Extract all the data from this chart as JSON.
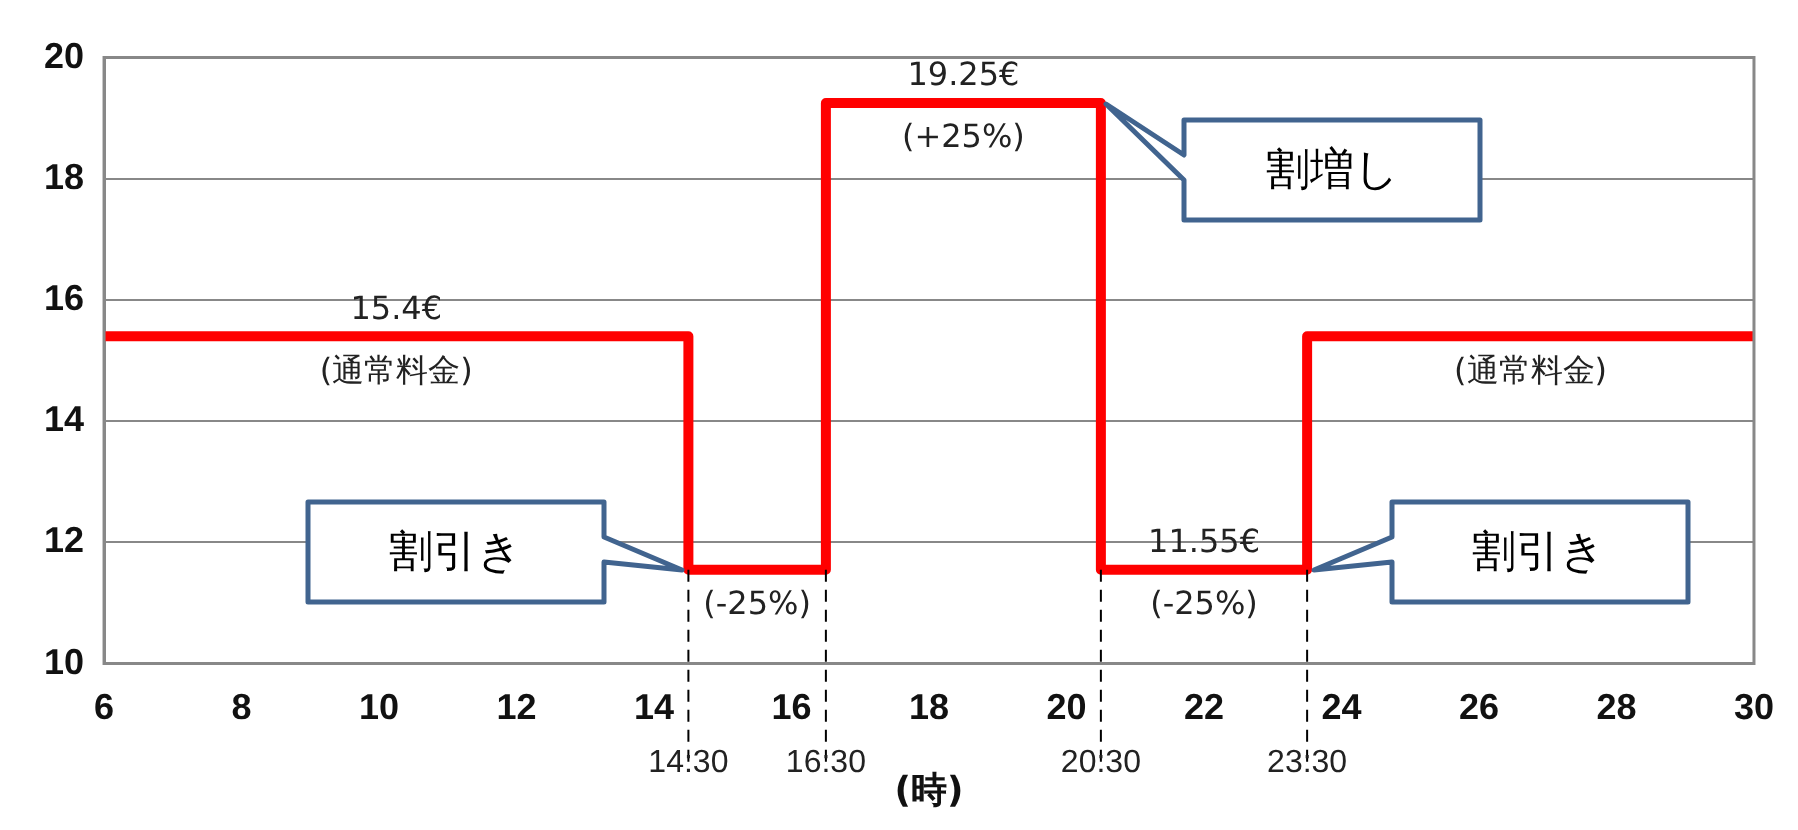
{
  "chart_data": {
    "type": "step",
    "xlabel": "(時)",
    "x": [
      6,
      14.5,
      16.5,
      20.5,
      23.5,
      30
    ],
    "series": [
      {
        "color": "#ff0000",
        "values": [
          15.4,
          11.55,
          19.25,
          11.55,
          15.4,
          15.4
        ]
      }
    ],
    "xlim": [
      6,
      30
    ],
    "xticks": [
      6,
      8,
      10,
      12,
      14,
      16,
      18,
      20,
      22,
      24,
      26,
      28,
      30
    ],
    "ylim": [
      10,
      20
    ],
    "yticks": [
      10,
      12,
      14,
      16,
      18,
      20
    ],
    "grid": "y",
    "legend": false,
    "marker": "none",
    "line_style": "solid",
    "ref_lines": [
      {
        "axis": "x",
        "value": 14.5,
        "label": "14:30",
        "line_style": "dashed"
      },
      {
        "axis": "x",
        "value": 16.5,
        "label": "16:30",
        "line_style": "dashed"
      },
      {
        "axis": "x",
        "value": 20.5,
        "label": "20:30",
        "line_style": "dashed"
      },
      {
        "axis": "x",
        "value": 23.5,
        "label": "23:30",
        "line_style": "dashed"
      }
    ],
    "annotations": [
      "15.4€",
      "(通常料金)",
      "(-25%)",
      "19.25€",
      "(+25%)",
      "11.55€",
      "(-25%)",
      "(通常料金)",
      "割引き",
      "割増し",
      "割引き"
    ]
  }
}
